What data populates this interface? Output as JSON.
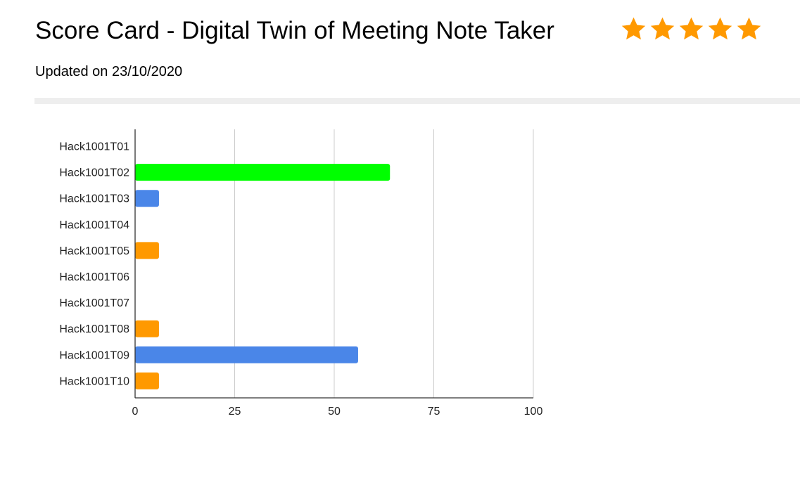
{
  "header": {
    "title": "Score Card - Digital Twin of Meeting Note Taker",
    "subtitle": "Updated on 23/10/2020",
    "rating": {
      "value": 5,
      "max": 5,
      "star_color": "#ff9900",
      "icon": "star-icon"
    }
  },
  "chart_data": {
    "type": "bar",
    "orientation": "horizontal",
    "title": "",
    "xlabel": "",
    "ylabel": "",
    "categories": [
      "Hack1001T01",
      "Hack1001T02",
      "Hack1001T03",
      "Hack1001T04",
      "Hack1001T05",
      "Hack1001T06",
      "Hack1001T07",
      "Hack1001T08",
      "Hack1001T09",
      "Hack1001T10"
    ],
    "values": [
      0,
      64,
      6,
      0,
      6,
      0,
      0,
      6,
      56,
      6
    ],
    "colors": [
      "#4a86e8",
      "#00ff00",
      "#4a86e8",
      "#4a86e8",
      "#ff9900",
      "#4a86e8",
      "#4a86e8",
      "#ff9900",
      "#4a86e8",
      "#ff9900"
    ],
    "xlim": [
      0,
      100
    ],
    "xticks": [
      0,
      25,
      50,
      75,
      100
    ],
    "grid": true,
    "legend": "none"
  }
}
